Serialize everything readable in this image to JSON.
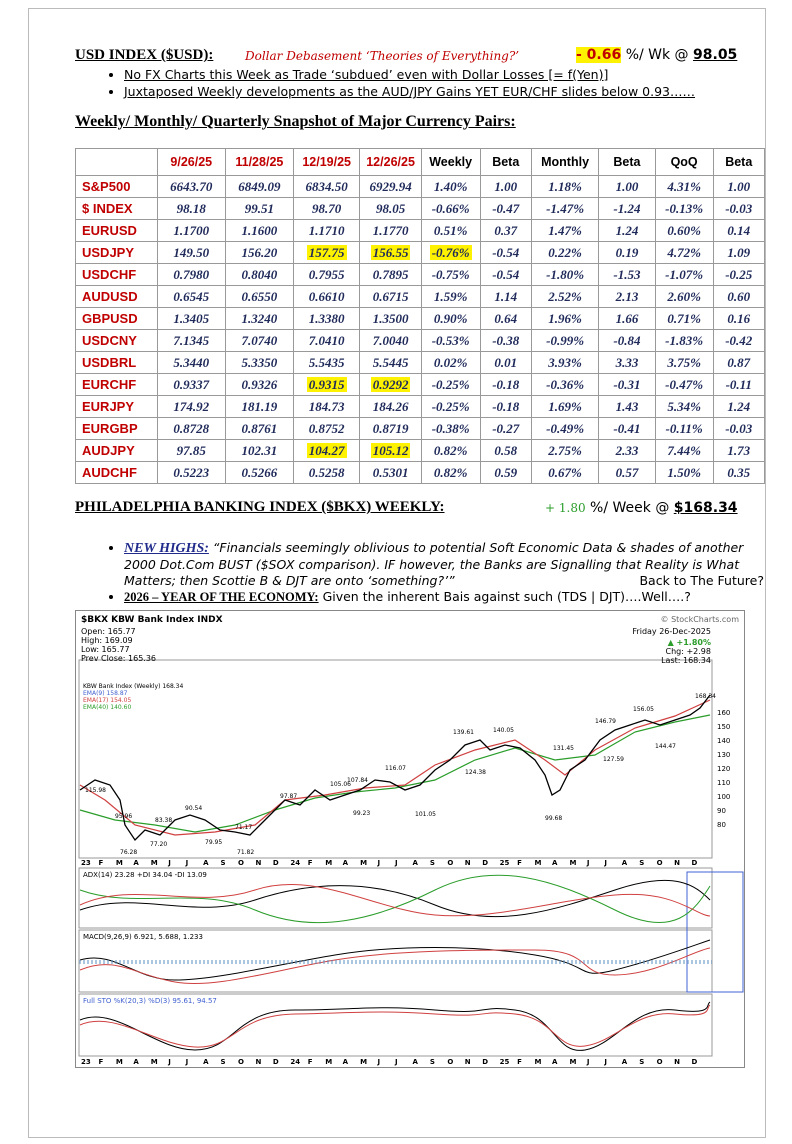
{
  "header": {
    "title": "USD INDEX ($USD):",
    "subtitle": "Dollar Debasement ‘Theories of Everything?’",
    "change": "- 0.66",
    "unit": "%/ Wk @",
    "level": "98.05"
  },
  "bullets": [
    "No FX Charts this Week as Trade ‘subdued’ even with Dollar Losses [= f(Yen)]",
    "Juxtaposed Weekly developments as the AUD/JPY Gains YET EUR/CHF slides below 0.93……"
  ],
  "table_title": "Weekly/ Monthly/ Quarterly Snapshot of Major Currency Pairs:",
  "table": {
    "columns": [
      "9/26/25",
      "11/28/25",
      "12/19/25",
      "12/26/25",
      "Weekly",
      "Beta",
      "Monthly",
      "Beta",
      "QoQ",
      "Beta"
    ],
    "rows": [
      [
        "S&P500",
        "6643.70",
        "6849.09",
        "6834.50",
        "6929.94",
        "1.40%",
        "1.00",
        "1.18%",
        "1.00",
        "4.31%",
        "1.00"
      ],
      [
        "$ INDEX",
        "98.18",
        "99.51",
        "98.70",
        "98.05",
        "-0.66%",
        "-0.47",
        "-1.47%",
        "-1.24",
        "-0.13%",
        "-0.03"
      ],
      [
        "EURUSD",
        "1.1700",
        "1.1600",
        "1.1710",
        "1.1770",
        "0.51%",
        "0.37",
        "1.47%",
        "1.24",
        "0.60%",
        "0.14"
      ],
      [
        "USDJPY",
        "149.50",
        "156.20",
        "157.75",
        "156.55",
        "-0.76%",
        "-0.54",
        "0.22%",
        "0.19",
        "4.72%",
        "1.09"
      ],
      [
        "USDCHF",
        "0.7980",
        "0.8040",
        "0.7955",
        "0.7895",
        "-0.75%",
        "-0.54",
        "-1.80%",
        "-1.53",
        "-1.07%",
        "-0.25"
      ],
      [
        "AUDUSD",
        "0.6545",
        "0.6550",
        "0.6610",
        "0.6715",
        "1.59%",
        "1.14",
        "2.52%",
        "2.13",
        "2.60%",
        "0.60"
      ],
      [
        "GBPUSD",
        "1.3405",
        "1.3240",
        "1.3380",
        "1.3500",
        "0.90%",
        "0.64",
        "1.96%",
        "1.66",
        "0.71%",
        "0.16"
      ],
      [
        "USDCNY",
        "7.1345",
        "7.0740",
        "7.0410",
        "7.0040",
        "-0.53%",
        "-0.38",
        "-0.99%",
        "-0.84",
        "-1.83%",
        "-0.42"
      ],
      [
        "USDBRL",
        "5.3440",
        "5.3350",
        "5.5435",
        "5.5445",
        "0.02%",
        "0.01",
        "3.93%",
        "3.33",
        "3.75%",
        "0.87"
      ],
      [
        "EURCHF",
        "0.9337",
        "0.9326",
        "0.9315",
        "0.9292",
        "-0.25%",
        "-0.18",
        "-0.36%",
        "-0.31",
        "-0.47%",
        "-0.11"
      ],
      [
        "EURJPY",
        "174.92",
        "181.19",
        "184.73",
        "184.26",
        "-0.25%",
        "-0.18",
        "1.69%",
        "1.43",
        "5.34%",
        "1.24"
      ],
      [
        "EURGBP",
        "0.8728",
        "0.8761",
        "0.8752",
        "0.8719",
        "-0.38%",
        "-0.27",
        "-0.49%",
        "-0.41",
        "-0.11%",
        "-0.03"
      ],
      [
        "AUDJPY",
        "97.85",
        "102.31",
        "104.27",
        "105.12",
        "0.82%",
        "0.58",
        "2.75%",
        "2.33",
        "7.44%",
        "1.73"
      ],
      [
        "AUDCHF",
        "0.5223",
        "0.5266",
        "0.5258",
        "0.5301",
        "0.82%",
        "0.59",
        "0.67%",
        "0.57",
        "1.50%",
        "0.35"
      ]
    ],
    "highlight": [
      [
        3,
        3
      ],
      [
        3,
        4
      ],
      [
        3,
        5
      ],
      [
        9,
        3
      ],
      [
        9,
        4
      ],
      [
        12,
        3
      ],
      [
        12,
        4
      ]
    ],
    "highlight_color": "#fff200"
  },
  "bkx": {
    "title": "PHILADELPHIA BANKING INDEX ($BKX) WEEKLY:",
    "change": "+ 1.80",
    "unit": "%/ Week @",
    "level": "$168.34"
  },
  "bullets2": [
    {
      "label": "NEW HIGHS:",
      "text": "“Financials seemingly oblivious to potential Soft Economic Data & shades of another 2000 Dot.Com BUST ($SOX comparison). IF however, the Banks are Signalling that Reality is What Matters; then Scottie B & DJT are onto ‘something?’”",
      "tail": "Back to The Future?"
    },
    {
      "label": "2026 – YEAR OF THE ECONOMY:",
      "text": "Given the inherent Bais against such (TDS | DJT)….Well….?"
    }
  ],
  "chart": {
    "title": "$BKX KBW Bank Index INDX",
    "source": "© StockCharts.com",
    "date": "Friday 26-Dec-2025",
    "change": "▲ +1.80%",
    "chg": "Chg: +2.98",
    "last": "Last: 168.34",
    "info": [
      "Open: 165.77",
      "High: 169.09",
      "Low: 165.77",
      "Prev Close: 165.36"
    ],
    "legend": [
      "KBW Bank Index (Weekly) 168.34",
      "EMA(9) 158.87",
      "EMA(17) 154.05",
      "EMA(40) 140.60"
    ],
    "price_labels": [
      "115.98",
      "76.28",
      "95.96",
      "77.20",
      "83.38",
      "90.54",
      "79.95",
      "71.17",
      "71.82",
      "97.87",
      "105.06",
      "107.84",
      "99.23",
      "116.07",
      "101.05",
      "139.61",
      "124.38",
      "140.05",
      "99.68",
      "131.45",
      "146.79",
      "127.59",
      "156.05",
      "144.47",
      "168.34"
    ],
    "yticks": [
      "160",
      "150",
      "140",
      "130",
      "120",
      "110",
      "100",
      "90",
      "80"
    ],
    "months": [
      "23",
      "F",
      "M",
      "A",
      "M",
      "J",
      "J",
      "A",
      "S",
      "O",
      "N",
      "D",
      "24",
      "F",
      "M",
      "A",
      "M",
      "J",
      "J",
      "A",
      "S",
      "O",
      "N",
      "D",
      "25",
      "F",
      "M",
      "A",
      "M",
      "J",
      "J",
      "A",
      "S",
      "O",
      "N",
      "D"
    ],
    "adx": "ADX(14) 23.28 +DI 34.04 -DI 13.09",
    "macd": "MACD(9,26,9) 6.921, 5.688, 1.233",
    "sto": "Full STO %K(20,3) %D(3) 95.61, 94.57"
  }
}
